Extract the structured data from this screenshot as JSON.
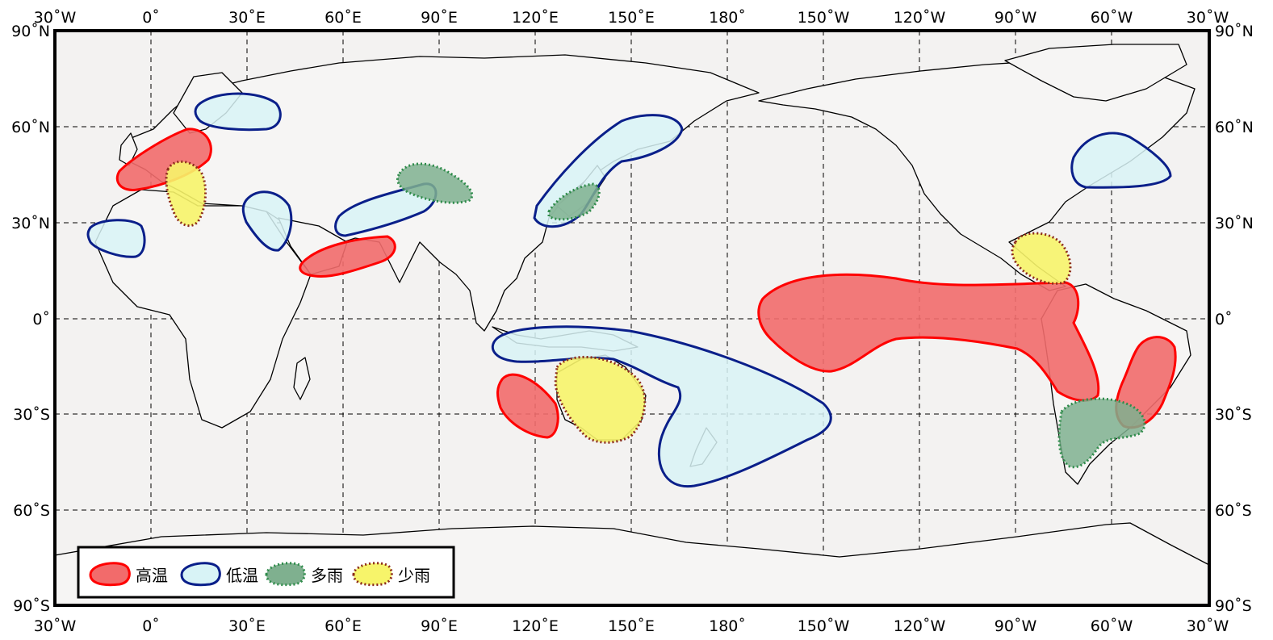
{
  "map": {
    "top_ticks": [
      "30˚W",
      "0˚",
      "30˚E",
      "60˚E",
      "90˚E",
      "120˚E",
      "150˚E",
      "180˚",
      "150˚W",
      "120˚W",
      "90˚W",
      "60˚W",
      "30˚W"
    ],
    "bottom_ticks": [
      "30˚W",
      "0˚",
      "30˚E",
      "60˚E",
      "90˚E",
      "120˚E",
      "150˚E",
      "180˚",
      "150˚W",
      "120˚W",
      "90˚W",
      "60˚W",
      "30˚W"
    ],
    "left_ticks": [
      "90˚N",
      "60˚N",
      "30˚N",
      "0˚",
      "30˚S",
      "60˚S",
      "90˚S"
    ],
    "right_ticks": [
      "90˚N",
      "60˚N",
      "30˚N",
      "0˚",
      "30˚S",
      "60˚S",
      "90˚S"
    ],
    "grid": true
  },
  "legend": {
    "items": [
      {
        "key": "warm",
        "label": "高温"
      },
      {
        "key": "cold",
        "label": "低温"
      },
      {
        "key": "wet",
        "label": "多雨"
      },
      {
        "key": "dry",
        "label": "少雨"
      }
    ]
  },
  "colors": {
    "warm_fill": "#f26b6b",
    "warm_stroke": "#ff0000",
    "cold_fill": "#d8f3f6",
    "cold_stroke": "#0a1f8a",
    "wet_fill": "#7fb08f",
    "wet_stroke": "#2e8b4a",
    "dry_fill": "#f7f46a",
    "dry_stroke": "#8b2a1a",
    "ocean": "#f3f2f1",
    "coast": "#000000",
    "grid": "#000000"
  }
}
